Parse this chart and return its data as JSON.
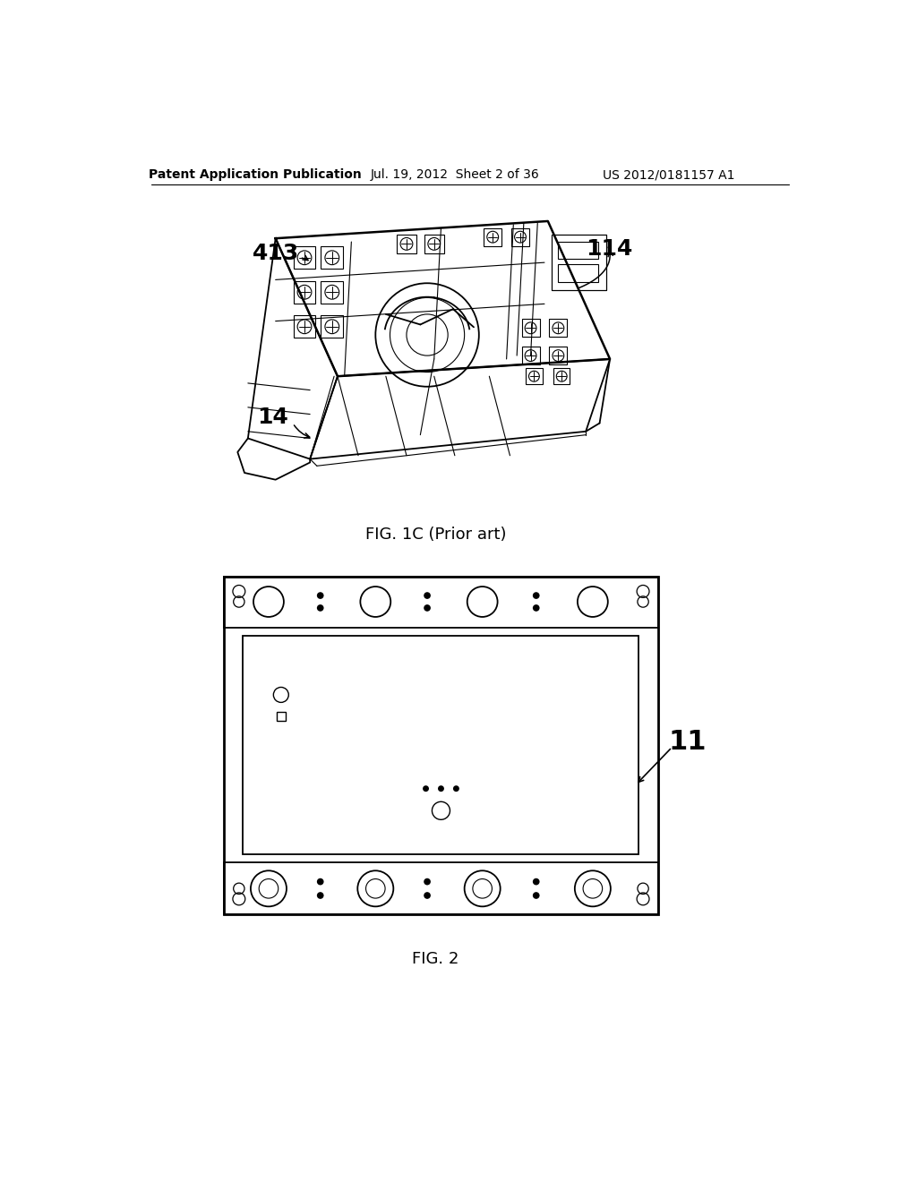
{
  "background_color": "#ffffff",
  "header_text_left": "Patent Application Publication",
  "header_text_mid": "Jul. 19, 2012  Sheet 2 of 36",
  "header_text_right": "US 2012/0181157 A1",
  "fig1c_caption": "FIG. 1C (Prior art)",
  "fig2_caption": "FIG. 2",
  "label_413": "413",
  "label_114": "114",
  "label_14": "14",
  "label_11": "11"
}
